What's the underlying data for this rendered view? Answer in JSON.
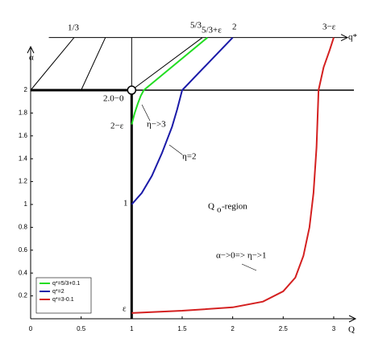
{
  "chart_data": {
    "type": "line",
    "x_label": "Q",
    "y_label": "α",
    "top_axis_label": "q*",
    "xlim": [
      0,
      3.2
    ],
    "ylim": [
      0,
      2.5
    ],
    "xticks": [
      0,
      0.5,
      1,
      1.5,
      2,
      2.5,
      3
    ],
    "yticks": [
      0.2,
      0.4,
      0.6,
      0.8,
      1,
      1.2,
      1.4,
      1.6,
      1.8,
      2
    ],
    "series": [
      {
        "name": "q*=5/3+0.1",
        "color": "#22dd22",
        "x": [
          1.0,
          1.03,
          1.06,
          1.09,
          1.12,
          1.75
        ],
        "values": [
          1.7,
          1.8,
          1.88,
          1.95,
          2.0,
          2.46
        ]
      },
      {
        "name": "q*=2",
        "color": "#1a1aa8",
        "x": [
          1.0,
          1.05,
          1.1,
          1.2,
          1.3,
          1.4,
          1.45,
          1.5,
          2.0
        ],
        "values": [
          1.0,
          1.05,
          1.1,
          1.25,
          1.45,
          1.68,
          1.83,
          2.0,
          2.46
        ]
      },
      {
        "name": "q*=3-0.1",
        "color": "#d42020",
        "x": [
          1.0,
          1.5,
          2.0,
          2.3,
          2.5,
          2.62,
          2.7,
          2.76,
          2.8,
          2.83,
          2.85,
          2.9,
          2.96,
          3.0
        ],
        "values": [
          0.05,
          0.07,
          0.1,
          0.15,
          0.24,
          0.36,
          0.55,
          0.8,
          1.1,
          1.5,
          2.0,
          2.2,
          2.35,
          2.46
        ]
      }
    ],
    "reference_lines": [
      {
        "x": [
          1,
          1
        ],
        "y": [
          0,
          2
        ]
      },
      {
        "x": [
          0,
          1
        ],
        "y": [
          2,
          2
        ]
      },
      {
        "x": [
          1,
          3.2
        ],
        "y": [
          2,
          2
        ]
      },
      {
        "x": [
          0.18,
          3.0
        ],
        "y": [
          2.46,
          2.46
        ]
      },
      {
        "x": [
          0,
          0.43
        ],
        "y": [
          2,
          2.46
        ]
      },
      {
        "x": [
          0.5,
          0.74
        ],
        "y": [
          2,
          2.46
        ]
      },
      {
        "x": [
          1,
          1
        ],
        "y": [
          2,
          2.46
        ]
      },
      {
        "x": [
          1,
          1.7
        ],
        "y": [
          2,
          2.46
        ]
      }
    ],
    "annotations": [
      "1/3",
      "5/3",
      "5/3+ε",
      "2",
      "3−ε",
      "2.0−0",
      "2−ε",
      "η−>3",
      "η=2",
      "1",
      "Q",
      "o",
      "-region",
      "α−>0=> η−>1",
      "ε"
    ],
    "legend": "lower left"
  }
}
